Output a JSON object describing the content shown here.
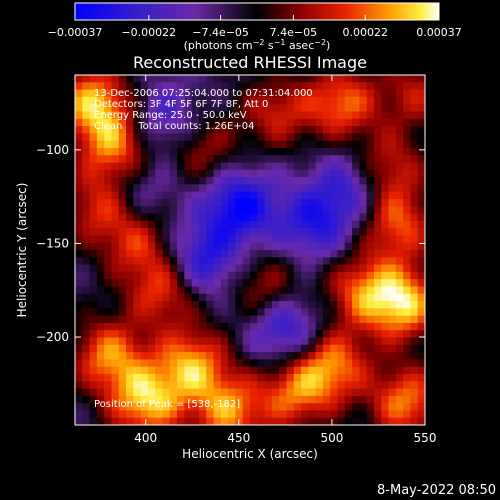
{
  "chart_data": {
    "type": "heatmap",
    "title": "Reconstructed RHESSI Image",
    "xlabel": "Heliocentric X (arcsec)",
    "ylabel": "Heliocentric Y (arcsec)",
    "xlim": [
      362,
      550
    ],
    "ylim": [
      -247,
      -60
    ],
    "x_ticks": [
      400,
      450,
      500,
      550
    ],
    "y_ticks": [
      -100,
      -150,
      -200
    ],
    "colorbar": {
      "label_parts": [
        "(photons cm",
        "-2",
        " s",
        "-1",
        " asec",
        "-2",
        ")"
      ],
      "range": [
        -0.00037,
        0.00037
      ],
      "tick_values": [
        -0.00037,
        -0.00022,
        -7.4e-05,
        7.4e-05,
        0.00022,
        0.00037
      ],
      "tick_labels": [
        "-0.00037",
        "-0.00022",
        "-7.4e-05",
        "7.4e-05",
        "0.00022",
        "0.00037"
      ],
      "colormap": "blue-purple-black-red-orange-yellow-white"
    },
    "annotations": [
      "13-Dec-2006 07:25:04.000 to 07:31:04.000",
      "Detectors: 3F 4F 5F 6F 7F 8F, Att 0",
      "Energy Range: 25.0 - 50.0 keV",
      "Clean     Total counts: 1.26E+04"
    ],
    "peak_label": "Position of Peak = [538,-182]",
    "peak": [
      538,
      -182
    ],
    "grid": false,
    "legend": "none",
    "heat_sources": [
      {
        "x": 372,
        "y": -75,
        "value": 0.00035
      },
      {
        "x": 385,
        "y": -100,
        "value": 0.0003
      },
      {
        "x": 375,
        "y": -130,
        "value": 0.00022
      },
      {
        "x": 395,
        "y": -150,
        "value": 0.0002
      },
      {
        "x": 410,
        "y": -175,
        "value": 0.00025
      },
      {
        "x": 380,
        "y": -210,
        "value": 0.0003
      },
      {
        "x": 400,
        "y": -235,
        "value": 0.00035
      },
      {
        "x": 425,
        "y": -215,
        "value": 0.00032
      },
      {
        "x": 445,
        "y": -240,
        "value": 0.0003
      },
      {
        "x": 430,
        "y": -100,
        "value": 0.00018
      },
      {
        "x": 470,
        "y": -80,
        "value": 0.0002
      },
      {
        "x": 505,
        "y": -75,
        "value": 0.00028
      },
      {
        "x": 530,
        "y": -110,
        "value": 0.00022
      },
      {
        "x": 545,
        "y": -70,
        "value": 0.00018
      },
      {
        "x": 535,
        "y": -140,
        "value": 0.00026
      },
      {
        "x": 538,
        "y": -182,
        "value": 0.00037
      },
      {
        "x": 515,
        "y": -175,
        "value": 0.00024
      },
      {
        "x": 500,
        "y": -215,
        "value": 0.0003
      },
      {
        "x": 480,
        "y": -230,
        "value": 0.00026
      },
      {
        "x": 540,
        "y": -235,
        "value": 0.0003
      },
      {
        "x": 465,
        "y": -175,
        "value": 0.0002
      },
      {
        "x": 450,
        "y": -130,
        "value": -0.0003
      },
      {
        "x": 430,
        "y": -160,
        "value": -0.00025
      },
      {
        "x": 490,
        "y": -140,
        "value": -0.00022
      },
      {
        "x": 475,
        "y": -195,
        "value": -0.00026
      },
      {
        "x": 410,
        "y": -85,
        "value": -0.00018
      },
      {
        "x": 510,
        "y": -120,
        "value": -0.0002
      },
      {
        "x": 395,
        "y": -120,
        "value": -0.00015
      }
    ]
  },
  "timestamp": "8-May-2022 08:50"
}
